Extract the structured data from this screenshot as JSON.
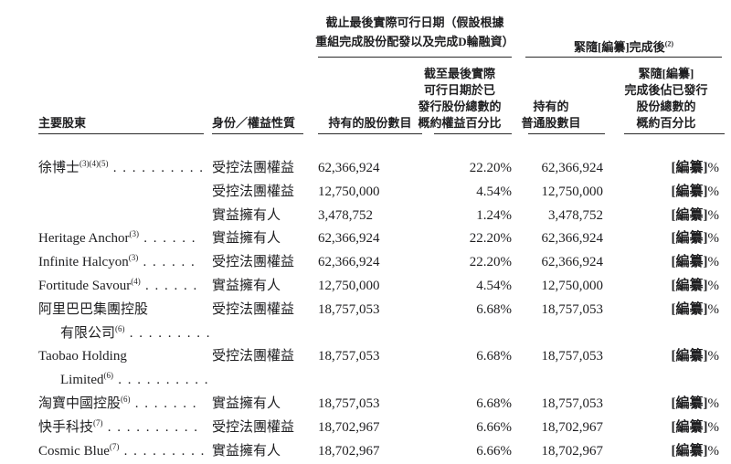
{
  "colors": {
    "text": "#1e1e20",
    "rule": "#2a2a2a",
    "background": "#ffffff"
  },
  "table": {
    "header": {
      "shareholder": "主要股東",
      "capacity": "身份／權益性質",
      "group1": {
        "title_line1": "截止最後實際可行日期（假設根據",
        "title_line2": "重組完成股份配發以及完成D輪融資）",
        "shares_label": "持有的股份數目",
        "pct_lines": [
          "截至最後實際",
          "可行日期於已",
          "發行股份總數的",
          "概約權益百分比"
        ]
      },
      "group2": {
        "title_prefix": "緊隨",
        "title_redacted": "[編纂]",
        "title_suffix": "完成後",
        "title_sup": "(2)",
        "ordinary_lines": [
          "持有的",
          "普通股數目"
        ],
        "pct_line1_prefix": "緊隨",
        "pct_line1_redacted": "[編纂]",
        "pct_lines": [
          "完成後佔已發行",
          "股份總數的",
          "概約百分比"
        ]
      }
    },
    "rows": [
      {
        "name": "徐博士",
        "sup": "(3)(4)(5)",
        "dots": " . . . . . . . . . .",
        "indent": false,
        "capacity": "受控法團權益",
        "shares": "62,366,924",
        "pct": "22.20%",
        "ordinary": "62,366,924",
        "redacted": "[編纂]",
        "percent": "%"
      },
      {
        "name": "",
        "sup": "",
        "dots": "",
        "indent": false,
        "capacity": "受控法團權益",
        "shares": "12,750,000",
        "pct": "4.54%",
        "ordinary": "12,750,000",
        "redacted": "[編纂]",
        "percent": "%"
      },
      {
        "name": "",
        "sup": "",
        "dots": "",
        "indent": false,
        "capacity": "實益擁有人",
        "shares": "3,478,752",
        "pct": "1.24%",
        "ordinary": "3,478,752",
        "redacted": "[編纂]",
        "percent": "%"
      },
      {
        "name": "Heritage Anchor",
        "sup": "(3)",
        "dots": " . . . . . .",
        "indent": false,
        "capacity": "實益擁有人",
        "shares": "62,366,924",
        "pct": "22.20%",
        "ordinary": "62,366,924",
        "redacted": "[編纂]",
        "percent": "%"
      },
      {
        "name": "Infinite Halcyon",
        "sup": "(3)",
        "dots": " . . . . . .",
        "indent": false,
        "capacity": "受控法團權益",
        "shares": "62,366,924",
        "pct": "22.20%",
        "ordinary": "62,366,924",
        "redacted": "[編纂]",
        "percent": "%"
      },
      {
        "name": "Fortitude Savour",
        "sup": "(4)",
        "dots": " . . . . . .",
        "indent": false,
        "capacity": "實益擁有人",
        "shares": "12,750,000",
        "pct": "4.54%",
        "ordinary": "12,750,000",
        "redacted": "[編纂]",
        "percent": "%"
      },
      {
        "name": "阿里巴巴集團控股",
        "sup": "",
        "dots": "",
        "indent": false,
        "capacity": "受控法團權益",
        "shares": "18,757,053",
        "pct": "6.68%",
        "ordinary": "18,757,053",
        "redacted": "[編纂]",
        "percent": "%"
      },
      {
        "name": "有限公司",
        "sup": "(6)",
        "dots": " . . . . . . . . .",
        "indent": true,
        "capacity": "",
        "shares": "",
        "pct": "",
        "ordinary": "",
        "redacted": "",
        "percent": ""
      },
      {
        "name": "Taobao Holding",
        "sup": "",
        "dots": "",
        "indent": false,
        "capacity": "受控法團權益",
        "shares": "18,757,053",
        "pct": "6.68%",
        "ordinary": "18,757,053",
        "redacted": "[編纂]",
        "percent": "%"
      },
      {
        "name": "Limited",
        "sup": "(6)",
        "dots": " . . . . . . . . . .",
        "indent": true,
        "capacity": "",
        "shares": "",
        "pct": "",
        "ordinary": "",
        "redacted": "",
        "percent": ""
      },
      {
        "name": "淘寶中國控股",
        "sup": "(6)",
        "dots": " . . . . . . .",
        "indent": false,
        "capacity": "實益擁有人",
        "shares": "18,757,053",
        "pct": "6.68%",
        "ordinary": "18,757,053",
        "redacted": "[編纂]",
        "percent": "%"
      },
      {
        "name": "快手科技",
        "sup": "(7)",
        "dots": " . . . . . . . . . .",
        "indent": false,
        "capacity": "受控法團權益",
        "shares": "18,702,967",
        "pct": "6.66%",
        "ordinary": "18,702,967",
        "redacted": "[編纂]",
        "percent": "%"
      },
      {
        "name": "Cosmic Blue",
        "sup": "(7)",
        "dots": " . . . . . . . . .",
        "indent": false,
        "capacity": "實益擁有人",
        "shares": "18,702,967",
        "pct": "6.66%",
        "ordinary": "18,702,967",
        "redacted": "[編纂]",
        "percent": "%"
      }
    ]
  }
}
